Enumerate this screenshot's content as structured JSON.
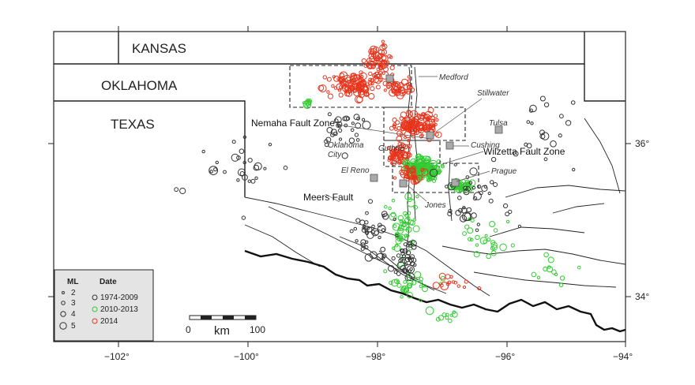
{
  "states": {
    "kansas": "KANSAS",
    "oklahoma": "OKLAHOMA",
    "texas": "TEXAS"
  },
  "cities": {
    "medford": "Medford",
    "stillwater": "Stillwater",
    "tulsa": "Tulsa",
    "guthrie": "Guthrie",
    "cushing": "Cushing",
    "oklahoma_city_1": "Oklahoma",
    "oklahoma_city_2": "City",
    "el_reno": "El Reno",
    "prague": "Prague",
    "jones": "Jones"
  },
  "faults": {
    "nemaha": "Nemaha Fault Zone",
    "wilzetta": "Wilzetta Fault Zone",
    "meers": "Meers Fault"
  },
  "axes": {
    "x_ticks": [
      "−102°",
      "−100°",
      "−98°",
      "−96°",
      "−94°"
    ],
    "y_ticks": [
      "36°",
      "34°"
    ]
  },
  "scale_bar": {
    "start": "0",
    "unit": "km",
    "end": "100"
  },
  "legend": {
    "ml_title": "ML",
    "ml_values": [
      "2",
      "3",
      "4",
      "5"
    ],
    "date_title": "Date",
    "date_entries": [
      {
        "label": "1974-2009",
        "color": "#333333"
      },
      {
        "label": "2010-2013",
        "color": "#33cc33"
      },
      {
        "label": "2014",
        "color": "#e8341c"
      }
    ]
  },
  "colors": {
    "old": "#333333",
    "mid": "#33cc33",
    "recent": "#e8341c",
    "station": "#aaaaaa"
  }
}
